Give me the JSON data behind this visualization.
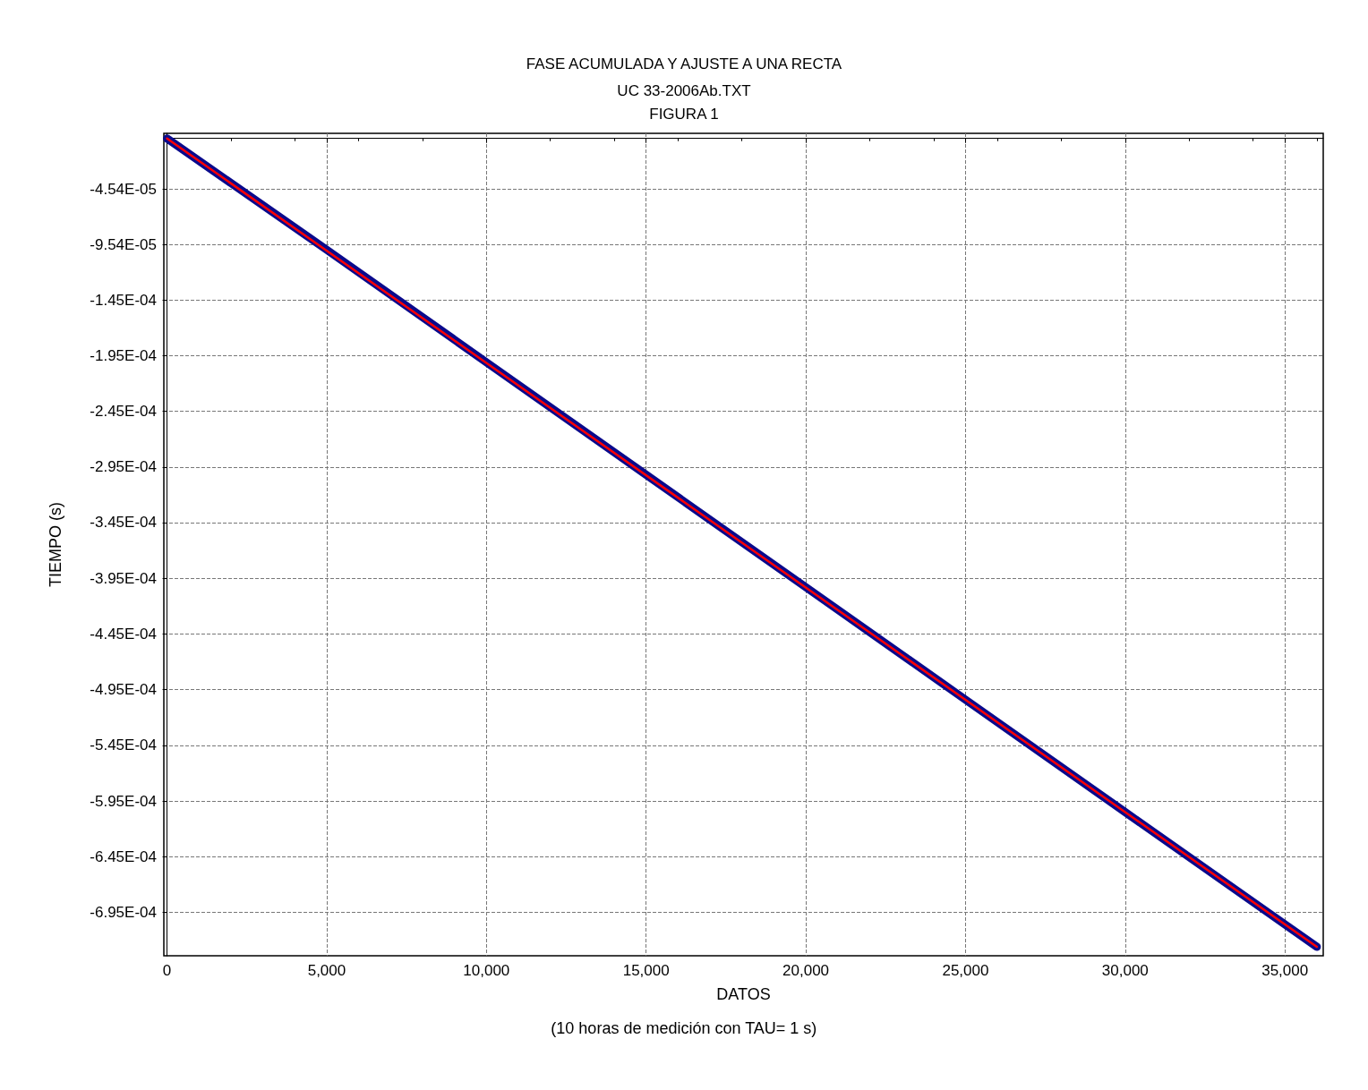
{
  "chart_data": {
    "type": "line",
    "title": "FASE ACUMULADA Y AJUSTE A UNA RECTA",
    "subtitle": "UC 33-2006Ab.TXT\nFIGURA 1",
    "xlabel": "DATOS",
    "ylabel": "TIEMPO (s)",
    "annotations": [
      "(10 horas de medición con TAU= 1 s)"
    ],
    "series": [
      {
        "color": "#0a0a8c",
        "x": [
          0,
          5000,
          10000,
          15000,
          20000,
          25000,
          30000,
          36000
        ],
        "values": [
          0,
          -0.0001,
          -0.000201,
          -0.000302,
          -0.000403,
          -0.000504,
          -0.000605,
          -0.000726
        ]
      },
      {
        "color": "#ff0000",
        "x": [
          0,
          36000
        ],
        "values": [
          0,
          -0.000726
        ]
      }
    ],
    "xlim": [
      -100,
      36200
    ],
    "xticks": [
      {
        "value": 0,
        "label": "0"
      },
      {
        "value": 5000,
        "label": "5,000"
      },
      {
        "value": 10000,
        "label": "10,000"
      },
      {
        "value": 15000,
        "label": "15,000"
      },
      {
        "value": 20000,
        "label": "20,000"
      },
      {
        "value": 25000,
        "label": "25,000"
      },
      {
        "value": 30000,
        "label": "30,000"
      },
      {
        "value": 35000,
        "label": "35,000"
      }
    ],
    "ylim": [
      -0.000734,
      4.6e-06
    ],
    "yticks": [
      {
        "value": -4.54e-05,
        "label": "-4.54E-05"
      },
      {
        "value": -9.54e-05,
        "label": "-9.54E-05"
      },
      {
        "value": -0.000145,
        "label": "-1.45E-04"
      },
      {
        "value": -0.000195,
        "label": "-1.95E-04"
      },
      {
        "value": -0.000245,
        "label": "-2.45E-04"
      },
      {
        "value": -0.000295,
        "label": "-2.95E-04"
      },
      {
        "value": -0.000345,
        "label": "-3.45E-04"
      },
      {
        "value": -0.000395,
        "label": "-3.95E-04"
      },
      {
        "value": -0.000445,
        "label": "-4.45E-04"
      },
      {
        "value": -0.000495,
        "label": "-4.95E-04"
      },
      {
        "value": -0.000545,
        "label": "-5.45E-04"
      },
      {
        "value": -0.000595,
        "label": "-5.95E-04"
      },
      {
        "value": -0.000645,
        "label": "-6.45E-04"
      },
      {
        "value": -0.000695,
        "label": "-6.95E-04"
      }
    ],
    "grid": true,
    "line_style": "solid",
    "marker": "none"
  }
}
